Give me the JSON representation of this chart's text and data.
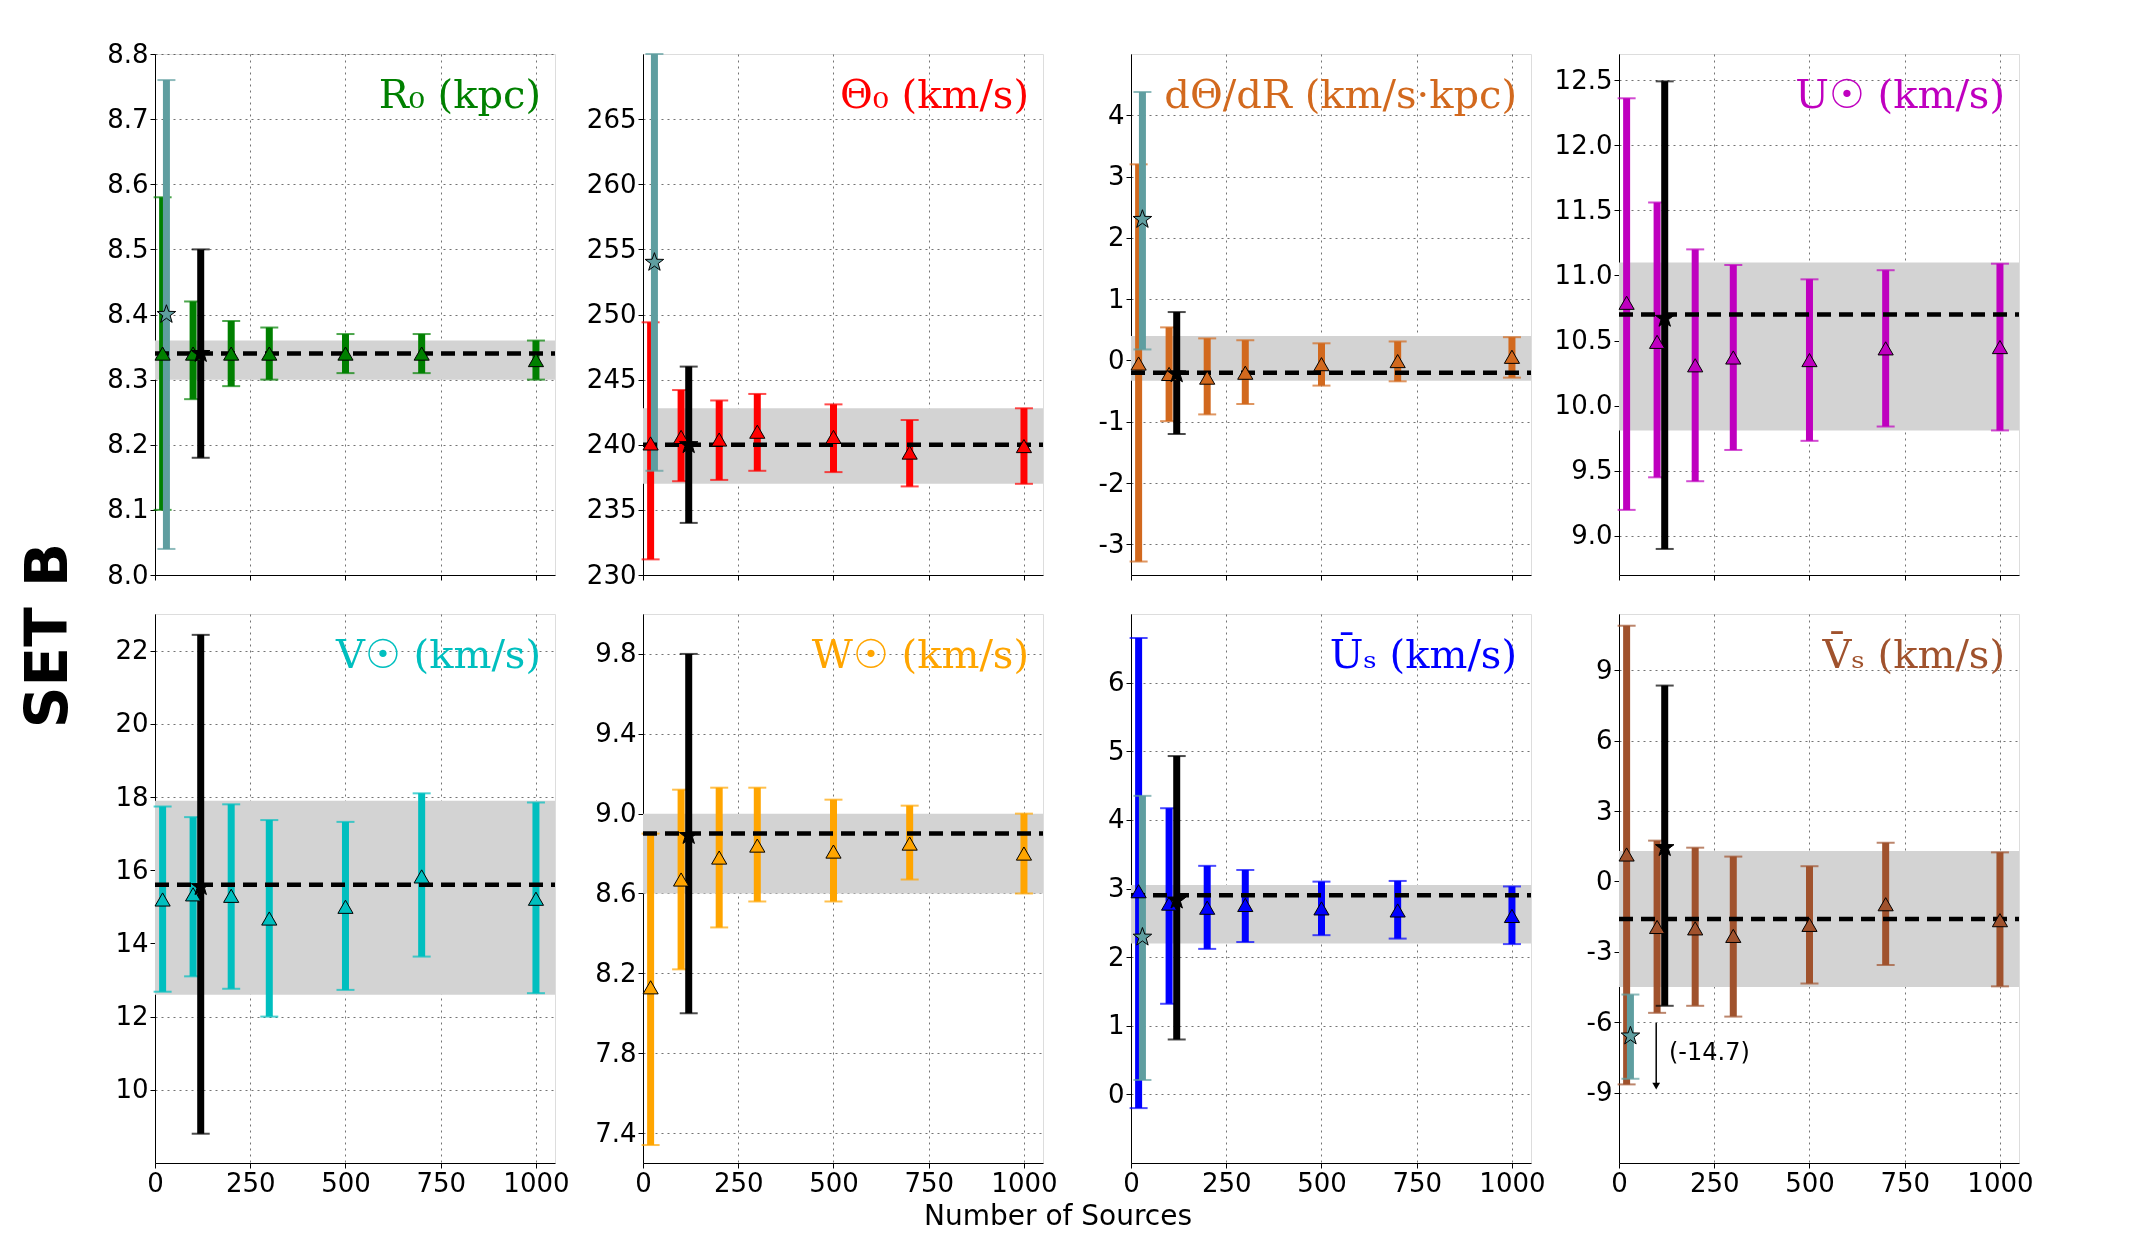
{
  "chart_data": [
    {
      "type": "scatter",
      "title": "R₀ (kpc)",
      "ylabel": "SET B",
      "xlim": [
        0,
        1050
      ],
      "xticks": [
        0,
        250,
        500,
        750,
        1000
      ],
      "ylim": [
        8.0,
        8.8
      ],
      "yticks": [
        {
          "value": 8,
          "label": "8.0"
        },
        8.1,
        8.2,
        8.3,
        8.4,
        8.5,
        8.6,
        8.7,
        8.8
      ],
      "grid": true,
      "tick_labels": "y",
      "ref_lines": [
        {
          "axis": "y",
          "value": 8.34,
          "color": "#000000",
          "line_style": "dashed"
        }
      ],
      "bands": [
        {
          "axis": "y",
          "from": 8.3,
          "to": 8.36,
          "color": "#d3d3d3"
        }
      ],
      "series": [
        {
          "color": "#008000",
          "marker": "triangle",
          "x": [
            20,
            100,
            200,
            300,
            500,
            700,
            1000
          ],
          "values": [
            8.34,
            8.34,
            8.34,
            8.34,
            8.34,
            8.34,
            8.33
          ],
          "errors": [
            [
              8.1,
              8.58
            ],
            [
              8.27,
              8.42
            ],
            [
              8.29,
              8.39
            ],
            [
              8.3,
              8.38
            ],
            [
              8.31,
              8.37
            ],
            [
              8.31,
              8.37
            ],
            [
              8.3,
              8.36
            ]
          ]
        },
        {
          "color": "#5f9ea0",
          "marker": "star",
          "x": [
            30
          ],
          "values": [
            8.4
          ],
          "errors": [
            [
              8.04,
              8.76
            ]
          ]
        },
        {
          "color": "#000000",
          "marker": "star",
          "x": [
            120
          ],
          "values": [
            8.34
          ],
          "errors": [
            [
              8.18,
              8.5
            ]
          ]
        }
      ]
    },
    {
      "type": "scatter",
      "title": "Θ₀ (km/s)",
      "xlim": [
        0,
        1050
      ],
      "xticks": [
        0,
        250,
        500,
        750,
        1000
      ],
      "ylim": [
        230,
        270
      ],
      "yticks": [
        230,
        235,
        240,
        245,
        250,
        255,
        260,
        265
      ],
      "grid": true,
      "tick_labels": "y",
      "ref_lines": [
        {
          "axis": "y",
          "value": 240,
          "color": "#000000",
          "line_style": "dashed"
        }
      ],
      "bands": [
        {
          "axis": "y",
          "from": 237.0,
          "to": 242.8,
          "color": "#d3d3d3"
        }
      ],
      "series": [
        {
          "color": "#ff0000",
          "marker": "triangle",
          "x": [
            20,
            100,
            200,
            300,
            500,
            700,
            1000
          ],
          "values": [
            240.1,
            240.6,
            240.4,
            241.0,
            240.6,
            239.4,
            239.9
          ],
          "errors": [
            [
              231.2,
              249.4
            ],
            [
              237.2,
              244.2
            ],
            [
              237.3,
              243.4
            ],
            [
              238.0,
              243.9
            ],
            [
              237.9,
              243.1
            ],
            [
              236.8,
              241.9
            ],
            [
              237.0,
              242.8
            ]
          ]
        },
        {
          "color": "#5f9ea0",
          "marker": "star",
          "x": [
            30
          ],
          "values": [
            254.0
          ],
          "errors": [
            [
              238.0,
              270
            ]
          ]
        },
        {
          "color": "#000000",
          "marker": "star",
          "x": [
            120
          ],
          "values": [
            240.0
          ],
          "errors": [
            [
              234.0,
              246.0
            ]
          ]
        }
      ]
    },
    {
      "type": "scatter",
      "title": "dΘ/dR (km/s·kpc)",
      "xlim": [
        0,
        1050
      ],
      "xticks": [
        0,
        250,
        500,
        750,
        1000
      ],
      "ylim": [
        -3.5,
        5
      ],
      "yticks": [
        -3,
        -2,
        -1,
        0,
        1,
        2,
        3,
        4
      ],
      "grid": true,
      "tick_labels": "y",
      "ref_lines": [
        {
          "axis": "y",
          "value": -0.2,
          "color": "#000000",
          "line_style": "dashed"
        }
      ],
      "bands": [
        {
          "axis": "y",
          "from": -0.33,
          "to": 0.4,
          "color": "#d3d3d3"
        }
      ],
      "series": [
        {
          "color": "#d2691e",
          "marker": "triangle",
          "x": [
            20,
            100,
            200,
            300,
            500,
            700,
            1000
          ],
          "values": [
            -0.05,
            -0.22,
            -0.28,
            -0.2,
            -0.06,
            -0.01,
            0.06
          ],
          "errors": [
            [
              -3.28,
              3.2
            ],
            [
              -0.99,
              0.54
            ],
            [
              -0.88,
              0.36
            ],
            [
              -0.71,
              0.33
            ],
            [
              -0.41,
              0.28
            ],
            [
              -0.34,
              0.31
            ],
            [
              -0.28,
              0.38
            ]
          ]
        },
        {
          "color": "#5f9ea0",
          "marker": "star",
          "x": [
            30
          ],
          "values": [
            2.3
          ],
          "errors": [
            [
              0.18,
              4.38
            ]
          ]
        },
        {
          "color": "#000000",
          "marker": "star",
          "x": [
            120
          ],
          "values": [
            -0.22
          ],
          "errors": [
            [
              -1.2,
              0.79
            ]
          ]
        }
      ]
    },
    {
      "type": "scatter",
      "title": "U☉ (km/s)",
      "xlim": [
        0,
        1050
      ],
      "xticks": [
        0,
        250,
        500,
        750,
        1000
      ],
      "ylim": [
        8.7,
        12.7
      ],
      "yticks": [
        {
          "value": 9,
          "label": "9.0"
        },
        9.5,
        {
          "value": 10,
          "label": "10.0"
        },
        10.5,
        {
          "value": 11,
          "label": "11.0"
        },
        11.5,
        {
          "value": 12,
          "label": "12.0"
        },
        12.5
      ],
      "grid": true,
      "tick_labels": "y",
      "ref_lines": [
        {
          "axis": "y",
          "value": 10.7,
          "color": "#000000",
          "line_style": "dashed"
        }
      ],
      "bands": [
        {
          "axis": "y",
          "from": 9.81,
          "to": 11.1,
          "color": "#d3d3d3"
        }
      ],
      "series": [
        {
          "color": "#bf00bf",
          "marker": "triangle",
          "x": [
            20,
            100,
            200,
            300,
            500,
            700,
            1000
          ],
          "values": [
            10.79,
            10.49,
            10.31,
            10.37,
            10.35,
            10.44,
            10.45
          ],
          "errors": [
            [
              9.2,
              12.36
            ],
            [
              9.45,
              11.56
            ],
            [
              9.42,
              11.2
            ],
            [
              9.66,
              11.08
            ],
            [
              9.73,
              10.97
            ],
            [
              9.84,
              11.04
            ],
            [
              9.81,
              11.09
            ]
          ]
        },
        {
          "color": "#000000",
          "marker": "star",
          "x": [
            120
          ],
          "values": [
            10.67
          ],
          "errors": [
            [
              8.9,
              12.49
            ]
          ]
        }
      ]
    },
    {
      "type": "scatter",
      "title": "V☉ (km/s)",
      "xlim": [
        0,
        1050
      ],
      "xticks": [
        0,
        250,
        500,
        750,
        1000
      ],
      "ylim": [
        8,
        23
      ],
      "yticks": [
        10,
        12,
        14,
        16,
        18,
        20,
        22
      ],
      "grid": true,
      "ref_lines": [
        {
          "axis": "y",
          "value": 15.6,
          "color": "#000000",
          "line_style": "dashed"
        }
      ],
      "bands": [
        {
          "axis": "y",
          "from": 12.6,
          "to": 17.9,
          "color": "#d3d3d3"
        }
      ],
      "series": [
        {
          "color": "#00bfbf",
          "marker": "triangle",
          "x": [
            20,
            100,
            200,
            300,
            500,
            700,
            1000
          ],
          "values": [
            15.2,
            15.34,
            15.3,
            14.68,
            15.0,
            15.83,
            15.22
          ],
          "errors": [
            [
              12.68,
              17.74
            ],
            [
              13.1,
              17.45
            ],
            [
              12.76,
              17.8
            ],
            [
              12.0,
              17.37
            ],
            [
              12.73,
              17.32
            ],
            [
              13.64,
              18.1
            ],
            [
              12.64,
              17.85
            ]
          ]
        },
        {
          "color": "#000000",
          "marker": "star",
          "x": [
            120
          ],
          "values": [
            15.55
          ],
          "errors": [
            [
              8.8,
              22.43
            ]
          ]
        }
      ]
    },
    {
      "type": "scatter",
      "title": "W☉ (km/s)",
      "xlabel": "Number of Sources",
      "xlim": [
        0,
        1050
      ],
      "xticks": [
        0,
        250,
        500,
        750,
        1000
      ],
      "ylim": [
        7.25,
        10.0
      ],
      "yticks": [
        7.4,
        7.8,
        8.2,
        8.6,
        {
          "value": 9,
          "label": "9.0"
        },
        9.4,
        9.8
      ],
      "grid": true,
      "ref_lines": [
        {
          "axis": "y",
          "value": 8.9,
          "color": "#000000",
          "line_style": "dashed"
        }
      ],
      "bands": [
        {
          "axis": "y",
          "from": 8.6,
          "to": 9.0,
          "color": "#d3d3d3"
        }
      ],
      "series": [
        {
          "color": "#ffa500",
          "marker": "triangle",
          "x": [
            20,
            100,
            200,
            300,
            500,
            700,
            1000
          ],
          "values": [
            8.13,
            8.67,
            8.78,
            8.84,
            8.81,
            8.85,
            8.8
          ],
          "errors": [
            [
              7.34,
              8.9
            ],
            [
              8.22,
              9.12
            ],
            [
              8.43,
              9.13
            ],
            [
              8.56,
              9.13
            ],
            [
              8.56,
              9.07
            ],
            [
              8.67,
              9.04
            ],
            [
              8.6,
              9.0
            ]
          ]
        },
        {
          "color": "#000000",
          "marker": "star",
          "x": [
            120
          ],
          "values": [
            8.89
          ],
          "errors": [
            [
              8.0,
              9.8
            ]
          ]
        }
      ]
    },
    {
      "type": "scatter",
      "title": "Ūₛ (km/s)",
      "xlim": [
        0,
        1050
      ],
      "xticks": [
        0,
        250,
        500,
        750,
        1000
      ],
      "ylim": [
        -1,
        7
      ],
      "yticks": [
        0,
        1,
        2,
        3,
        4,
        5,
        6
      ],
      "grid": true,
      "ref_lines": [
        {
          "axis": "y",
          "value": 2.9,
          "color": "#000000",
          "line_style": "dashed"
        }
      ],
      "bands": [
        {
          "axis": "y",
          "from": 2.2,
          "to": 3.05,
          "color": "#d3d3d3"
        }
      ],
      "series": [
        {
          "color": "#0000ff",
          "marker": "triangle",
          "x": [
            20,
            100,
            200,
            300,
            500,
            700,
            1000
          ],
          "values": [
            2.96,
            2.78,
            2.72,
            2.76,
            2.71,
            2.68,
            2.6
          ],
          "errors": [
            [
              -0.2,
              6.65
            ],
            [
              1.32,
              4.17
            ],
            [
              2.12,
              3.33
            ],
            [
              2.22,
              3.27
            ],
            [
              2.32,
              3.1
            ],
            [
              2.27,
              3.11
            ],
            [
              2.19,
              3.03
            ]
          ]
        },
        {
          "color": "#5f9ea0",
          "marker": "star",
          "x": [
            30
          ],
          "values": [
            2.29
          ],
          "errors": [
            [
              0.21,
              4.35
            ]
          ]
        },
        {
          "color": "#000000",
          "marker": "star",
          "x": [
            120
          ],
          "values": [
            2.83
          ],
          "errors": [
            [
              0.8,
              4.93
            ]
          ]
        }
      ]
    },
    {
      "type": "scatter",
      "title": "V̄ₛ (km/s)",
      "xlim": [
        0,
        1050
      ],
      "xticks": [
        0,
        250,
        500,
        750,
        1000
      ],
      "ylim": [
        -12,
        11.4
      ],
      "yticks": [
        -9,
        -6,
        -3,
        0,
        3,
        6,
        9
      ],
      "grid": true,
      "ref_lines": [
        {
          "axis": "y",
          "value": -1.6,
          "color": "#000000",
          "line_style": "dashed"
        }
      ],
      "bands": [
        {
          "axis": "y",
          "from": -4.5,
          "to": 1.3,
          "color": "#d3d3d3"
        }
      ],
      "annotations": [
        "(-14.7)"
      ],
      "series": [
        {
          "color": "#a0522d",
          "marker": "triangle",
          "x": [
            20,
            100,
            200,
            300,
            500,
            700,
            1000
          ],
          "values": [
            1.15,
            -1.94,
            -2.0,
            -2.32,
            -1.85,
            -0.97,
            -1.65
          ],
          "errors": [
            [
              -8.65,
              10.9
            ],
            [
              -5.6,
              1.74
            ],
            [
              -5.3,
              1.44
            ],
            [
              -5.76,
              1.06
            ],
            [
              -4.35,
              0.65
            ],
            [
              -3.56,
              1.65
            ],
            [
              -4.47,
              1.24
            ]
          ]
        },
        {
          "color": "#5f9ea0",
          "marker": "star",
          "x": [
            30
          ],
          "values": [
            -6.59
          ],
          "errors": [
            [
              -8.41,
              -4.82
            ]
          ]
        },
        {
          "color": "#000000",
          "marker": "star",
          "x": [
            120
          ],
          "values": [
            1.44
          ],
          "errors": [
            [
              -5.3,
              8.35
            ]
          ]
        }
      ]
    }
  ]
}
